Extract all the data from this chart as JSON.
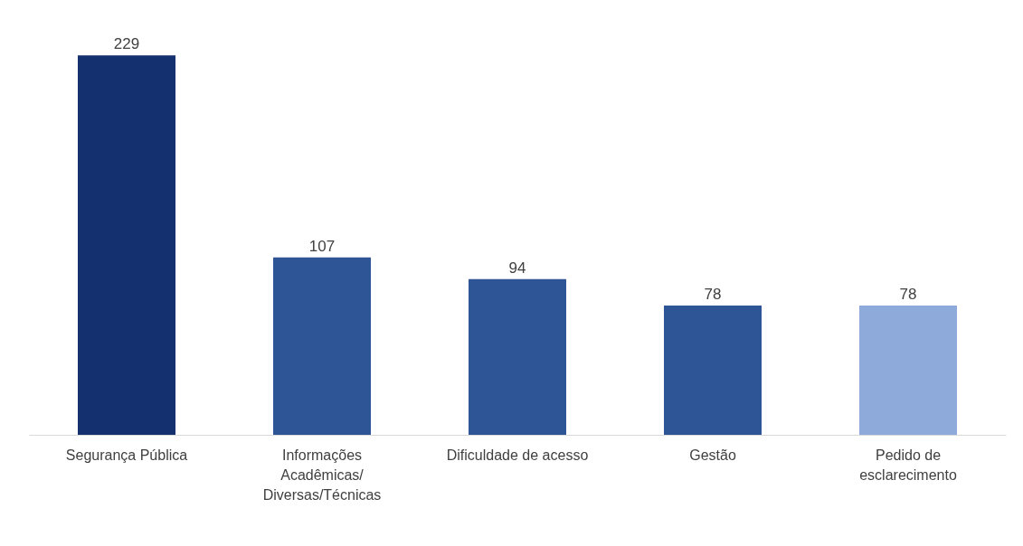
{
  "chart_data": {
    "type": "bar",
    "categories": [
      "Segurança Pública",
      "Informações Acadêmicas/ Diversas/Técnicas",
      "Dificuldade de acesso",
      "Gestão",
      "Pedido de esclarecimento"
    ],
    "values": [
      229,
      107,
      94,
      78,
      78
    ],
    "colors": [
      "#14306e",
      "#2e5596",
      "#2e5596",
      "#2e5596",
      "#8eaadb"
    ],
    "data_labels": true
  }
}
